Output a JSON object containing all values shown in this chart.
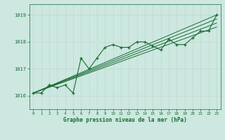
{
  "bg_color": "#cce8e0",
  "grid_color": "#c8d8d0",
  "line_color": "#1a6b35",
  "text_color": "#1a6b35",
  "xlabel": "Graphe pression niveau de la mer (hPa)",
  "ylim": [
    1015.5,
    1019.4
  ],
  "xlim": [
    -0.5,
    23.5
  ],
  "yticks": [
    1016,
    1017,
    1018,
    1019
  ],
  "xticks": [
    0,
    1,
    2,
    3,
    4,
    5,
    6,
    7,
    8,
    9,
    10,
    11,
    12,
    13,
    14,
    15,
    16,
    17,
    18,
    19,
    20,
    21,
    22,
    23
  ],
  "main_series": [
    1016.1,
    1016.1,
    1016.4,
    1016.3,
    1016.4,
    1016.1,
    1017.4,
    1017.0,
    1017.4,
    1017.8,
    1017.9,
    1017.8,
    1017.8,
    1018.0,
    1018.0,
    1017.85,
    1017.7,
    1018.1,
    1017.9,
    1017.9,
    1018.15,
    1018.4,
    1018.4,
    1019.0
  ],
  "trend_lines": [
    {
      "x0": 0,
      "y0": 1016.1,
      "x1": 23,
      "y1": 1019.0
    },
    {
      "x0": 0,
      "y0": 1016.1,
      "x1": 23,
      "y1": 1018.85
    },
    {
      "x0": 0,
      "y0": 1016.1,
      "x1": 23,
      "y1": 1018.7
    },
    {
      "x0": 0,
      "y0": 1016.1,
      "x1": 23,
      "y1": 1018.55
    }
  ]
}
